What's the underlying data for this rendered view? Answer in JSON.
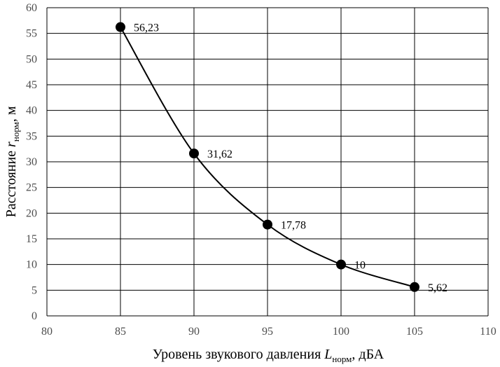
{
  "chart_data": {
    "type": "line",
    "x": [
      85,
      90,
      95,
      100,
      105
    ],
    "y": [
      56.23,
      31.62,
      17.78,
      10,
      5.62
    ],
    "data_labels": [
      "56,23",
      "31,62",
      "17,78",
      "10",
      "5,62"
    ],
    "xlim": [
      80,
      110
    ],
    "ylim": [
      0,
      60
    ],
    "x_ticks": [
      "80",
      "85",
      "90",
      "95",
      "100",
      "105",
      "110"
    ],
    "y_ticks": [
      "0",
      "5",
      "10",
      "15",
      "20",
      "25",
      "30",
      "35",
      "40",
      "45",
      "50",
      "55",
      "60"
    ],
    "grid": true,
    "smooth": true,
    "marker": "circle",
    "line_color": "#000000",
    "grid_color": "#000000",
    "xlabel": {
      "prefix": "Уровень звукового давления ",
      "symbol": "L",
      "subscript": "норм",
      "suffix": ", дБА"
    },
    "ylabel": {
      "prefix": "Расстояние ",
      "symbol": "r",
      "subscript": "норм",
      "suffix": ", м"
    }
  }
}
